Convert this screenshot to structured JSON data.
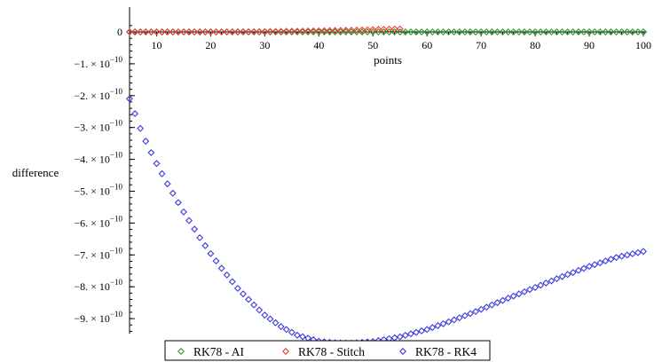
{
  "chart_data": {
    "type": "scatter",
    "title": "",
    "xlabel": "points",
    "ylabel": "difference",
    "xlim": [
      5,
      100
    ],
    "ylim": [
      -9.9e-10,
      8e-12
    ],
    "x_ticks": [
      10,
      20,
      30,
      40,
      50,
      60,
      70,
      80,
      90,
      100
    ],
    "x_tick_labels": [
      "10",
      "20",
      "30",
      "40",
      "50",
      "60",
      "70",
      "80",
      "90",
      "100"
    ],
    "y_ticks": [
      0,
      -1e-10,
      -2e-10,
      -3e-10,
      -4e-10,
      -5e-10,
      -6e-10,
      -7e-10,
      -8e-10,
      -9e-10
    ],
    "y_tick_labels": [
      {
        "mant": "0",
        "exp": ""
      },
      {
        "mant": "−1. × 10",
        "exp": "−10"
      },
      {
        "mant": "−2. × 10",
        "exp": "−10"
      },
      {
        "mant": "−3. × 10",
        "exp": "−10"
      },
      {
        "mant": "−4. × 10",
        "exp": "−10"
      },
      {
        "mant": "−5. × 10",
        "exp": "−10"
      },
      {
        "mant": "−6. × 10",
        "exp": "−10"
      },
      {
        "mant": "−7. × 10",
        "exp": "−10"
      },
      {
        "mant": "−8. × 10",
        "exp": "−10"
      },
      {
        "mant": "−9. × 10",
        "exp": "−10"
      }
    ],
    "grid": false,
    "legend_position": "bottom",
    "series": [
      {
        "name": "RK78 - AI",
        "color": "#2e9e2e",
        "marker": "diamond",
        "x_start": 5,
        "x_end": 100,
        "x_step": 1,
        "y": [
          0
        ]
      },
      {
        "name": "RK78 - Stitch",
        "color": "#ee3b3b",
        "marker": "diamond",
        "x_start": 5,
        "x_end": 55,
        "x_step": 1,
        "y_points": [
          [
            5,
            0
          ],
          [
            10,
            0
          ],
          [
            15,
            2e-14
          ],
          [
            20,
            1e-13
          ],
          [
            25,
            4e-13
          ],
          [
            30,
            1.1e-12
          ],
          [
            35,
            2.2e-12
          ],
          [
            40,
            3.6e-12
          ],
          [
            45,
            5.2e-12
          ],
          [
            50,
            7.2e-12
          ],
          [
            55,
            9.5e-12
          ]
        ]
      },
      {
        "name": "RK78 - RK4",
        "color": "#3a3ae0",
        "marker": "diamond",
        "x_start": 5,
        "x_end": 100,
        "x_step": 1,
        "y_points": [
          [
            5,
            -2.1e-10
          ],
          [
            7,
            -3.03e-10
          ],
          [
            8,
            -3.43e-10
          ],
          [
            9,
            -3.79e-10
          ],
          [
            10,
            -4.13e-10
          ],
          [
            12,
            -4.77e-10
          ],
          [
            15,
            -5.65e-10
          ],
          [
            18,
            -6.46e-10
          ],
          [
            20,
            -6.96e-10
          ],
          [
            22,
            -7.42e-10
          ],
          [
            25,
            -8.05e-10
          ],
          [
            28,
            -8.57e-10
          ],
          [
            30,
            -8.89e-10
          ],
          [
            33,
            -9.25e-10
          ],
          [
            36,
            -9.52e-10
          ],
          [
            40,
            -9.71e-10
          ],
          [
            43,
            -9.76e-10
          ],
          [
            46,
            -9.77e-10
          ],
          [
            50,
            -9.72e-10
          ],
          [
            55,
            -9.57e-10
          ],
          [
            60,
            -9.34e-10
          ],
          [
            65,
            -9.04e-10
          ],
          [
            70,
            -8.71e-10
          ],
          [
            75,
            -8.36e-10
          ],
          [
            80,
            -8.02e-10
          ],
          [
            85,
            -7.68e-10
          ],
          [
            90,
            -7.36e-10
          ],
          [
            95,
            -7.08e-10
          ],
          [
            100,
            -6.89e-10
          ]
        ]
      }
    ]
  }
}
